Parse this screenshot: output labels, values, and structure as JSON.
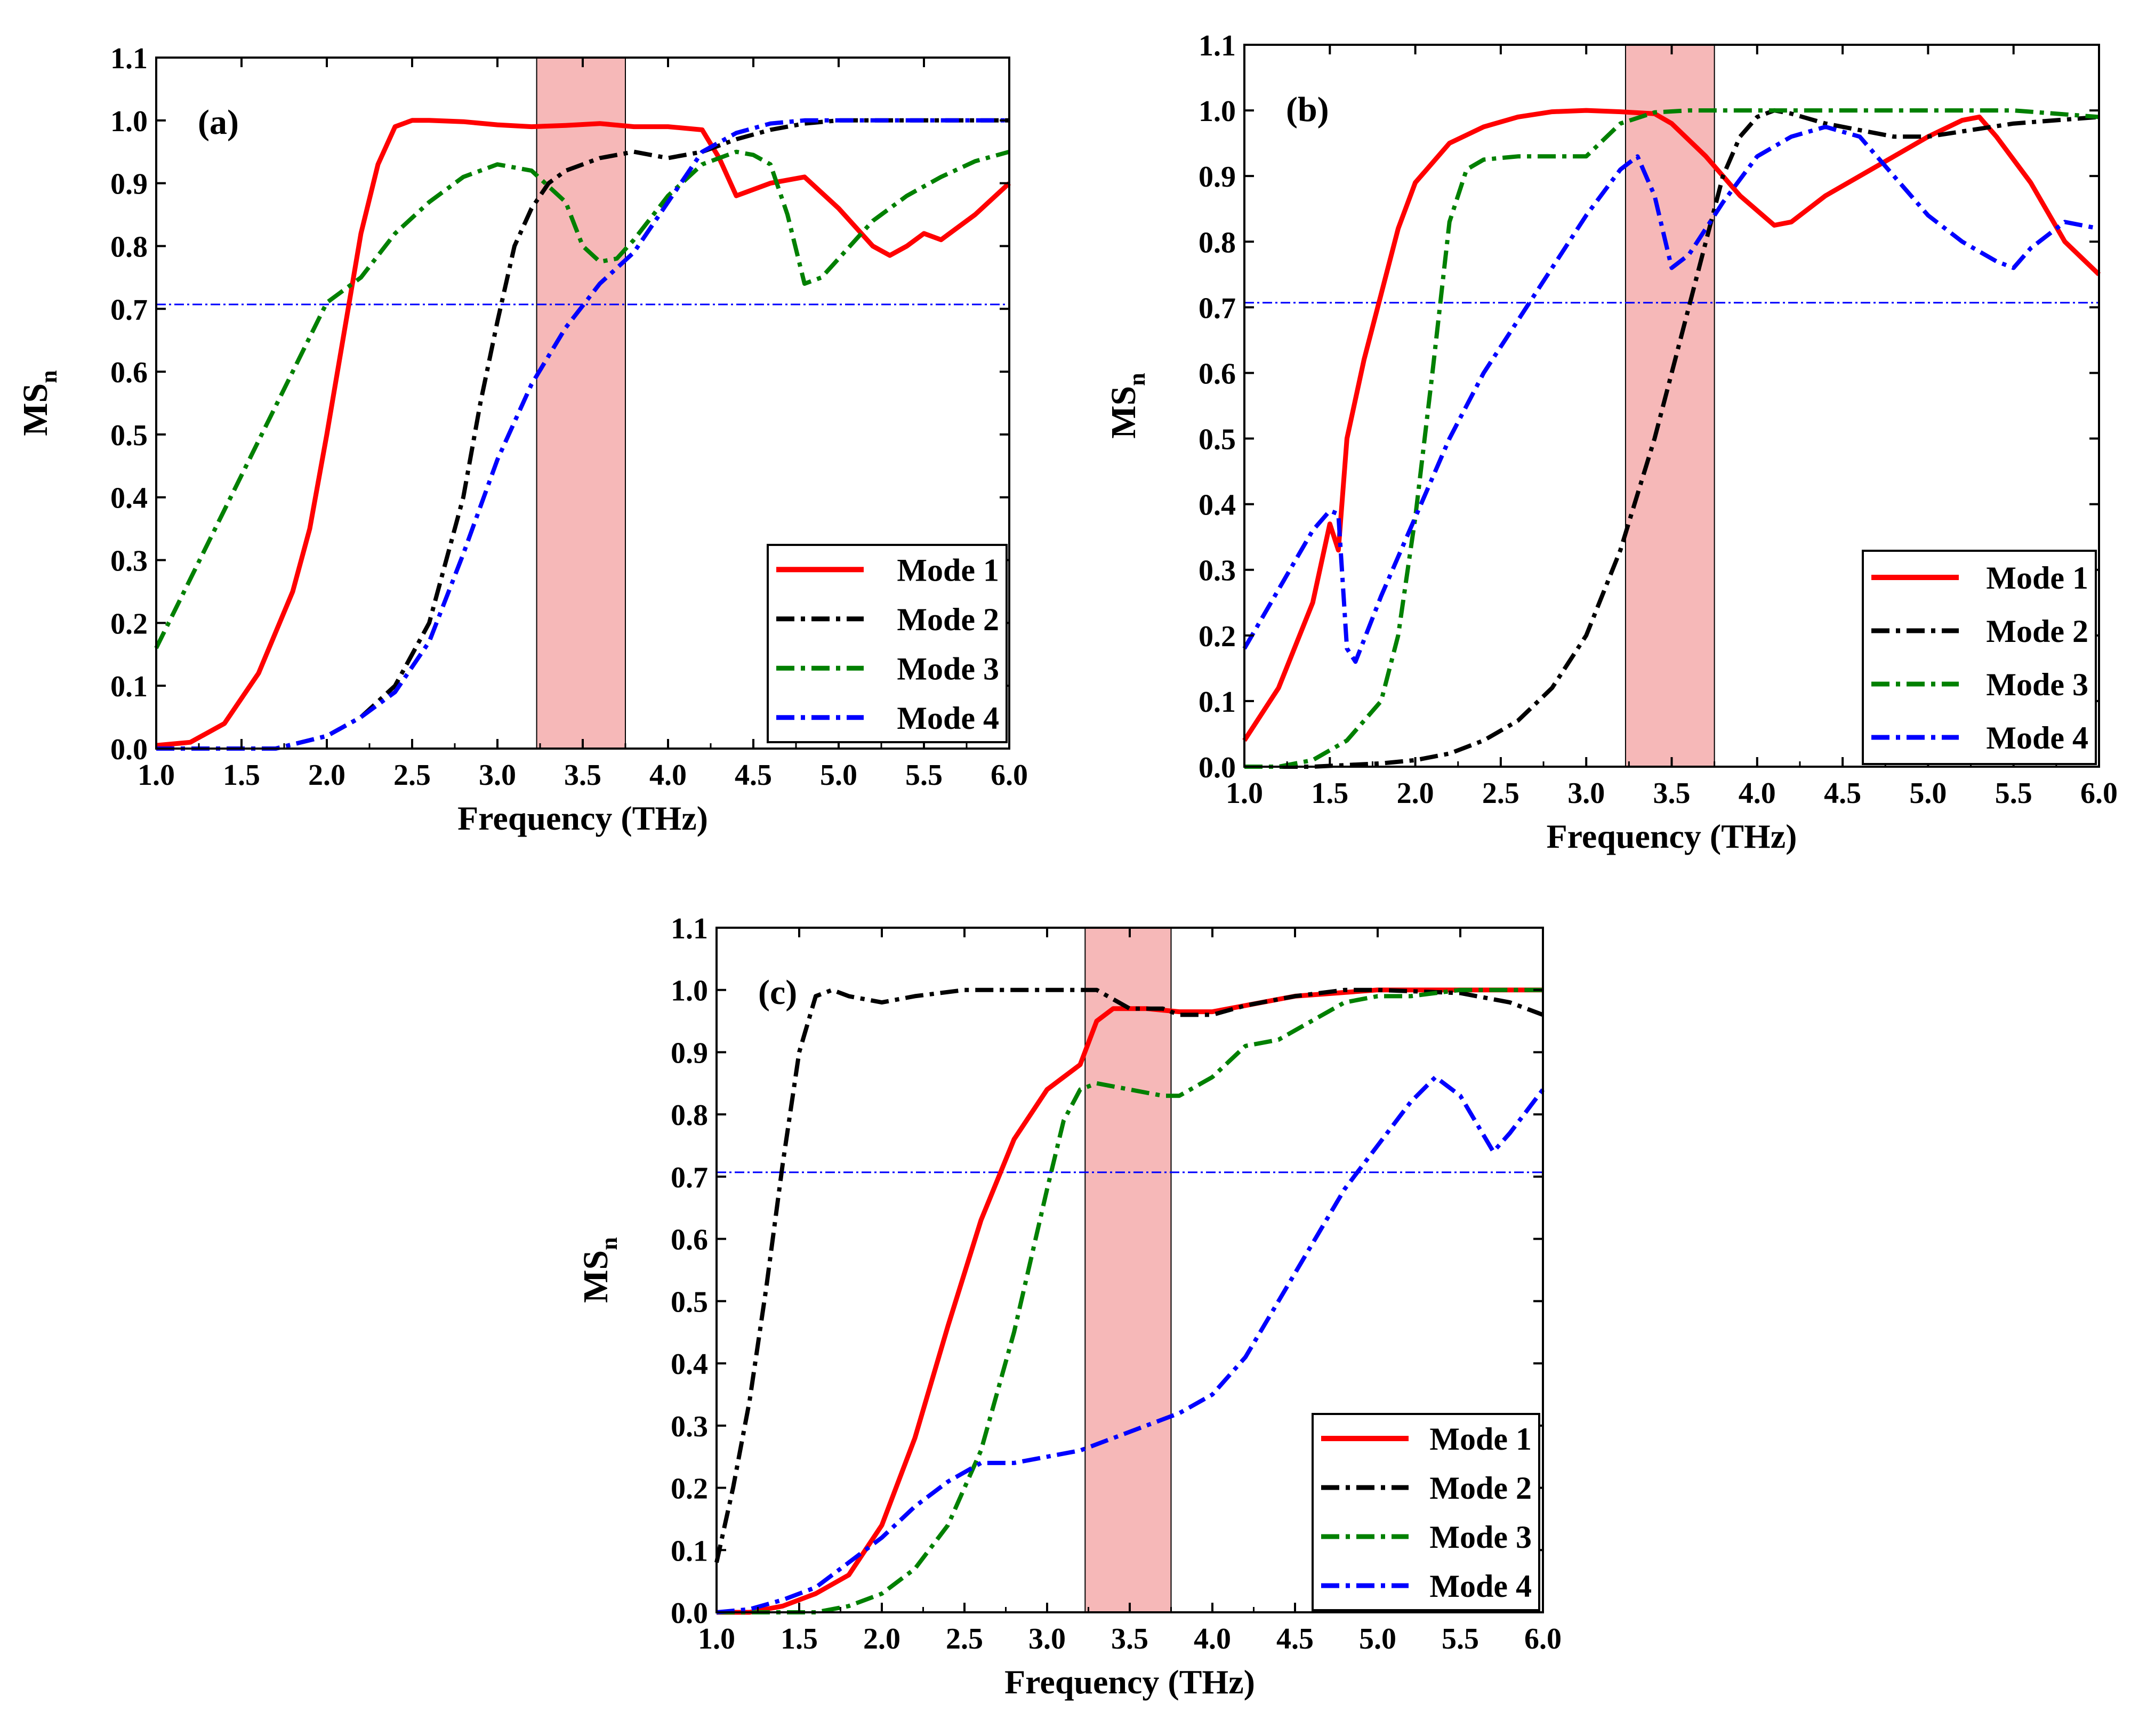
{
  "colors": {
    "mode1": "#ff0000",
    "mode2": "#000000",
    "mode3": "#008000",
    "mode4": "#0000ff",
    "band_fill": "#f6b8b8",
    "threshold": "#0000ff"
  },
  "chart_data": [
    {
      "type": "line",
      "panel_label": "(a)",
      "xlabel": "Frequency (THz)",
      "ylabel_main": "MS",
      "ylabel_sub": "n",
      "xlim": [
        1.0,
        6.0
      ],
      "ylim": [
        0.0,
        1.1
      ],
      "x_ticks": [
        "1.0",
        "1.5",
        "2.0",
        "2.5",
        "3.0",
        "3.5",
        "4.0",
        "4.5",
        "5.0",
        "5.5",
        "6.0"
      ],
      "y_ticks": [
        "0.0",
        "0.1",
        "0.2",
        "0.3",
        "0.4",
        "0.5",
        "0.6",
        "0.7",
        "0.8",
        "0.9",
        "1.0",
        "1.1"
      ],
      "highlight_band": [
        3.23,
        3.75
      ],
      "threshold": 0.707,
      "legend_position": "bottom-right",
      "series": [
        {
          "name": "Mode 1",
          "style": "solid",
          "x": [
            1.0,
            1.2,
            1.4,
            1.6,
            1.8,
            1.9,
            2.0,
            2.1,
            2.2,
            2.3,
            2.4,
            2.5,
            2.6,
            2.8,
            3.0,
            3.2,
            3.4,
            3.6,
            3.8,
            4.0,
            4.2,
            4.3,
            4.4,
            4.6,
            4.8,
            5.0,
            5.2,
            5.3,
            5.4,
            5.5,
            5.6,
            5.8,
            6.0
          ],
          "y": [
            0.005,
            0.01,
            0.04,
            0.12,
            0.25,
            0.35,
            0.5,
            0.66,
            0.82,
            0.93,
            0.99,
            1.0,
            1.0,
            0.998,
            0.993,
            0.99,
            0.992,
            0.995,
            0.99,
            0.99,
            0.985,
            0.94,
            0.88,
            0.9,
            0.91,
            0.86,
            0.8,
            0.785,
            0.8,
            0.82,
            0.81,
            0.85,
            0.9
          ]
        },
        {
          "name": "Mode 2",
          "style": "dash-dot",
          "x": [
            1.0,
            1.4,
            1.7,
            2.0,
            2.2,
            2.4,
            2.6,
            2.8,
            2.9,
            3.0,
            3.1,
            3.2,
            3.3,
            3.4,
            3.6,
            3.8,
            4.0,
            4.2,
            4.4,
            4.6,
            4.8,
            5.0,
            5.5,
            6.0
          ],
          "y": [
            0.0,
            0.0,
            0.0,
            0.02,
            0.05,
            0.1,
            0.2,
            0.4,
            0.55,
            0.68,
            0.8,
            0.86,
            0.9,
            0.92,
            0.94,
            0.95,
            0.94,
            0.95,
            0.97,
            0.985,
            0.995,
            1.0,
            1.0,
            1.0
          ]
        },
        {
          "name": "Mode 3",
          "style": "dash-dot",
          "x": [
            1.0,
            1.2,
            1.4,
            1.6,
            1.8,
            2.0,
            2.2,
            2.4,
            2.6,
            2.8,
            3.0,
            3.2,
            3.4,
            3.5,
            3.6,
            3.7,
            3.8,
            4.0,
            4.2,
            4.4,
            4.5,
            4.6,
            4.7,
            4.8,
            4.9,
            5.0,
            5.2,
            5.4,
            5.6,
            5.8,
            6.0
          ],
          "y": [
            0.16,
            0.27,
            0.38,
            0.49,
            0.6,
            0.71,
            0.75,
            0.82,
            0.87,
            0.91,
            0.93,
            0.92,
            0.87,
            0.8,
            0.775,
            0.78,
            0.81,
            0.88,
            0.93,
            0.95,
            0.945,
            0.93,
            0.85,
            0.74,
            0.75,
            0.78,
            0.84,
            0.88,
            0.91,
            0.935,
            0.95
          ]
        },
        {
          "name": "Mode 4",
          "style": "dash-dot",
          "x": [
            1.0,
            1.4,
            1.7,
            2.0,
            2.2,
            2.4,
            2.6,
            2.8,
            3.0,
            3.2,
            3.4,
            3.6,
            3.8,
            4.0,
            4.2,
            4.4,
            4.6,
            4.8,
            5.0,
            5.5,
            6.0
          ],
          "y": [
            0.0,
            0.0,
            0.0,
            0.02,
            0.05,
            0.09,
            0.17,
            0.31,
            0.46,
            0.58,
            0.67,
            0.74,
            0.79,
            0.87,
            0.95,
            0.98,
            0.995,
            1.0,
            1.0,
            1.0,
            1.0
          ]
        }
      ],
      "legend": [
        "Mode 1",
        "Mode 2",
        "Mode 3",
        "Mode 4"
      ]
    },
    {
      "type": "line",
      "panel_label": "(b)",
      "xlabel": "Frequency (THz)",
      "ylabel_main": "MS",
      "ylabel_sub": "n",
      "xlim": [
        1.0,
        6.0
      ],
      "ylim": [
        0.0,
        1.1
      ],
      "x_ticks": [
        "1.0",
        "1.5",
        "2.0",
        "2.5",
        "3.0",
        "3.5",
        "4.0",
        "4.5",
        "5.0",
        "5.5",
        "6.0"
      ],
      "y_ticks": [
        "0.0",
        "0.1",
        "0.2",
        "0.3",
        "0.4",
        "0.5",
        "0.6",
        "0.7",
        "0.8",
        "0.9",
        "1.0",
        "1.1"
      ],
      "highlight_band": [
        3.23,
        3.75
      ],
      "threshold": 0.707,
      "legend_position": "bottom-right",
      "series": [
        {
          "name": "Mode 1",
          "style": "solid",
          "x": [
            1.0,
            1.2,
            1.4,
            1.5,
            1.55,
            1.6,
            1.7,
            1.8,
            1.9,
            2.0,
            2.2,
            2.4,
            2.6,
            2.8,
            3.0,
            3.2,
            3.4,
            3.5,
            3.7,
            3.9,
            4.1,
            4.2,
            4.4,
            4.6,
            4.8,
            5.0,
            5.2,
            5.3,
            5.4,
            5.6,
            5.8,
            6.0
          ],
          "y": [
            0.04,
            0.12,
            0.25,
            0.37,
            0.33,
            0.5,
            0.62,
            0.72,
            0.82,
            0.89,
            0.95,
            0.975,
            0.99,
            0.998,
            1.0,
            0.998,
            0.995,
            0.98,
            0.93,
            0.87,
            0.825,
            0.83,
            0.87,
            0.9,
            0.93,
            0.96,
            0.985,
            0.99,
            0.96,
            0.89,
            0.8,
            0.75
          ]
        },
        {
          "name": "Mode 2",
          "style": "dash-dot",
          "x": [
            1.0,
            1.4,
            1.8,
            2.0,
            2.2,
            2.4,
            2.6,
            2.8,
            3.0,
            3.2,
            3.4,
            3.5,
            3.6,
            3.7,
            3.8,
            3.9,
            4.0,
            4.1,
            4.2,
            4.4,
            4.6,
            4.8,
            5.0,
            5.5,
            6.0
          ],
          "y": [
            0.0,
            0.0,
            0.005,
            0.01,
            0.02,
            0.04,
            0.07,
            0.12,
            0.2,
            0.33,
            0.5,
            0.6,
            0.7,
            0.8,
            0.9,
            0.96,
            0.99,
            1.0,
            0.995,
            0.98,
            0.97,
            0.96,
            0.96,
            0.98,
            0.99
          ]
        },
        {
          "name": "Mode 3",
          "style": "dash-dot",
          "x": [
            1.0,
            1.2,
            1.4,
            1.6,
            1.8,
            1.9,
            2.0,
            2.1,
            2.2,
            2.3,
            2.4,
            2.6,
            2.8,
            3.0,
            3.2,
            3.4,
            3.6,
            4.0,
            4.5,
            5.0,
            5.5,
            6.0
          ],
          "y": [
            0.0,
            0.0,
            0.01,
            0.04,
            0.1,
            0.2,
            0.38,
            0.6,
            0.83,
            0.91,
            0.925,
            0.93,
            0.93,
            0.93,
            0.98,
            0.997,
            1.0,
            1.0,
            1.0,
            1.0,
            1.0,
            0.99
          ]
        },
        {
          "name": "Mode 4",
          "style": "dash-dot",
          "x": [
            1.0,
            1.2,
            1.4,
            1.5,
            1.55,
            1.6,
            1.65,
            1.8,
            2.0,
            2.2,
            2.4,
            2.6,
            2.8,
            3.0,
            3.2,
            3.3,
            3.4,
            3.5,
            3.6,
            3.8,
            4.0,
            4.2,
            4.4,
            4.6,
            4.8,
            5.0,
            5.2,
            5.4,
            5.5,
            5.6,
            5.8,
            6.0
          ],
          "y": [
            0.18,
            0.27,
            0.36,
            0.39,
            0.385,
            0.18,
            0.16,
            0.26,
            0.38,
            0.5,
            0.6,
            0.68,
            0.76,
            0.84,
            0.91,
            0.93,
            0.87,
            0.76,
            0.78,
            0.86,
            0.93,
            0.96,
            0.975,
            0.96,
            0.9,
            0.84,
            0.8,
            0.77,
            0.76,
            0.79,
            0.83,
            0.82
          ]
        }
      ],
      "legend": [
        "Mode 1",
        "Mode 2",
        "Mode 3",
        "Mode 4"
      ]
    },
    {
      "type": "line",
      "panel_label": "(c)",
      "xlabel": "Frequency (THz)",
      "ylabel_main": "MS",
      "ylabel_sub": "n",
      "xlim": [
        1.0,
        6.0
      ],
      "ylim": [
        0.0,
        1.1
      ],
      "x_ticks": [
        "1.0",
        "1.5",
        "2.0",
        "2.5",
        "3.0",
        "3.5",
        "4.0",
        "4.5",
        "5.0",
        "5.5",
        "6.0"
      ],
      "y_ticks": [
        "0.0",
        "0.1",
        "0.2",
        "0.3",
        "0.4",
        "0.5",
        "0.6",
        "0.7",
        "0.8",
        "0.9",
        "1.0",
        "1.1"
      ],
      "highlight_band": [
        3.23,
        3.75
      ],
      "threshold": 0.707,
      "legend_position": "bottom-right",
      "series": [
        {
          "name": "Mode 1",
          "style": "solid",
          "x": [
            1.0,
            1.2,
            1.4,
            1.6,
            1.8,
            2.0,
            2.2,
            2.4,
            2.6,
            2.8,
            3.0,
            3.1,
            3.2,
            3.3,
            3.4,
            3.6,
            3.8,
            4.0,
            4.2,
            4.5,
            5.0,
            5.5,
            6.0
          ],
          "y": [
            0.0,
            0.0,
            0.01,
            0.03,
            0.06,
            0.14,
            0.28,
            0.46,
            0.63,
            0.76,
            0.84,
            0.86,
            0.88,
            0.95,
            0.97,
            0.97,
            0.965,
            0.965,
            0.975,
            0.99,
            1.0,
            1.0,
            1.0
          ]
        },
        {
          "name": "Mode 2",
          "style": "dash-dot",
          "x": [
            1.0,
            1.1,
            1.2,
            1.3,
            1.4,
            1.5,
            1.6,
            1.7,
            1.8,
            2.0,
            2.2,
            2.5,
            3.0,
            3.3,
            3.5,
            3.7,
            3.8,
            4.0,
            4.2,
            4.5,
            4.8,
            5.0,
            5.5,
            5.8,
            6.0
          ],
          "y": [
            0.08,
            0.2,
            0.34,
            0.52,
            0.72,
            0.9,
            0.99,
            1.0,
            0.99,
            0.98,
            0.99,
            1.0,
            1.0,
            1.0,
            0.97,
            0.97,
            0.96,
            0.96,
            0.975,
            0.99,
            1.0,
            1.0,
            0.995,
            0.98,
            0.96
          ]
        },
        {
          "name": "Mode 3",
          "style": "dash-dot",
          "x": [
            1.0,
            1.4,
            1.6,
            1.8,
            2.0,
            2.2,
            2.4,
            2.6,
            2.8,
            3.0,
            3.1,
            3.2,
            3.3,
            3.5,
            3.7,
            3.8,
            4.0,
            4.2,
            4.4,
            4.6,
            4.8,
            5.0,
            5.2,
            5.5,
            6.0
          ],
          "y": [
            0.0,
            0.0,
            0.0,
            0.01,
            0.03,
            0.07,
            0.14,
            0.26,
            0.45,
            0.68,
            0.79,
            0.84,
            0.85,
            0.84,
            0.83,
            0.83,
            0.86,
            0.91,
            0.92,
            0.95,
            0.98,
            0.99,
            0.99,
            1.0,
            1.0
          ]
        },
        {
          "name": "Mode 4",
          "style": "dash-dot",
          "x": [
            1.0,
            1.2,
            1.4,
            1.6,
            1.8,
            2.0,
            2.2,
            2.4,
            2.6,
            2.8,
            3.0,
            3.2,
            3.4,
            3.6,
            3.8,
            4.0,
            4.2,
            4.4,
            4.6,
            4.8,
            5.0,
            5.2,
            5.35,
            5.5,
            5.7,
            5.8,
            6.0
          ],
          "y": [
            0.0,
            0.005,
            0.02,
            0.04,
            0.08,
            0.12,
            0.17,
            0.21,
            0.24,
            0.24,
            0.25,
            0.26,
            0.28,
            0.3,
            0.32,
            0.35,
            0.41,
            0.5,
            0.59,
            0.68,
            0.75,
            0.82,
            0.86,
            0.83,
            0.74,
            0.77,
            0.84
          ]
        }
      ],
      "legend": [
        "Mode 1",
        "Mode 2",
        "Mode 3",
        "Mode 4"
      ]
    }
  ]
}
